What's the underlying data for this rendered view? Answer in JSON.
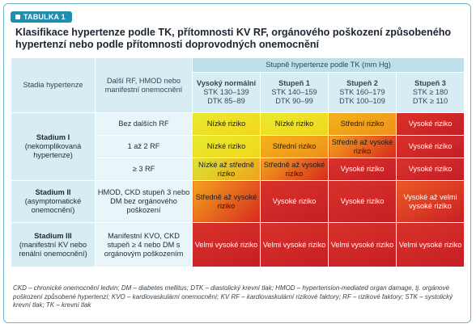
{
  "tag": "TABULKA 1",
  "title": "Klasifikace hypertenze podle TK, přítomnosti KV RF, orgánového poškození způsobeného hypertenzí nebo podle přítomnosti doprovodných onemocnění",
  "headers": {
    "stage": "Stadia hypertenze",
    "factors": "Další RF, HMOD nebo manifestní onemocnění",
    "grades_group": "Stupně hypertenze podle TK (mm Hg)",
    "grades": [
      {
        "name": "Vysoký normální",
        "stk": "STK 130–139",
        "dtk": "DTK 85–89"
      },
      {
        "name": "Stupeň 1",
        "stk": "STK 140–159",
        "dtk": "DTK 90–99"
      },
      {
        "name": "Stupeň 2",
        "stk": "STK 160–179",
        "dtk": "DTK 100–109"
      },
      {
        "name": "Stupeň 3",
        "stk": "STK ≥ 180",
        "dtk": "DTK ≥ 110"
      }
    ]
  },
  "stages": [
    {
      "name": "Stadium I",
      "desc": "(nekomplikovaná hypertenze)"
    },
    {
      "name": "Stadium II",
      "desc": "(asymptomatické onemocnění)"
    },
    {
      "name": "Stadium III",
      "desc": "(manifestní KV nebo renální onemocnění)"
    }
  ],
  "rows": [
    {
      "factor": "Bez dalších RF",
      "risks": [
        "Nízké riziko",
        "Nízké riziko",
        "Střední riziko",
        "Vysoké riziko"
      ]
    },
    {
      "factor": "1 až 2 RF",
      "risks": [
        "Nízké riziko",
        "Střední riziko",
        "Středně až vysoké riziko",
        "Vysoké riziko"
      ]
    },
    {
      "factor": "≥ 3 RF",
      "risks": [
        "Nízké až středně riziko",
        "Středně až vysoké riziko",
        "Vysoké riziko",
        "Vysoké riziko"
      ]
    },
    {
      "factor": "HMOD, CKD stupeň 3 nebo DM bez orgánového poškození",
      "risks": [
        "Středně až vysoké riziko",
        "Vysoké riziko",
        "Vysoké riziko",
        "Vysoké až velmi vysoké riziko"
      ]
    },
    {
      "factor": "Manifestní KVO, CKD stupeň ≥ 4 nebo DM s orgánovým poškozením",
      "risks": [
        "Velmi vysoké riziko",
        "Velmi vysoké riziko",
        "Velmi vysoké riziko",
        "Velmi vysoké riziko"
      ]
    }
  ],
  "footer": "CKD – chronické onemocnění ledvin; DM – diabetes mellitus; DTK – diastolický krevní tlak; HMOD – hypertension-mediated organ damage, tj. orgánové poškození způsobené hypertenzí; KVO – kardiovaskulární onemocnění; KV RF – kardiovaskulární rizikové faktory; RF – rizikové faktory; STK – systolický krevní tlak; TK – krevní tlak",
  "colors": {
    "accent": "#1f8fb1",
    "header_bg": "#d7ecf3",
    "low": "#ebe52a",
    "medium": "#f2a51c",
    "high": "#c92027"
  }
}
